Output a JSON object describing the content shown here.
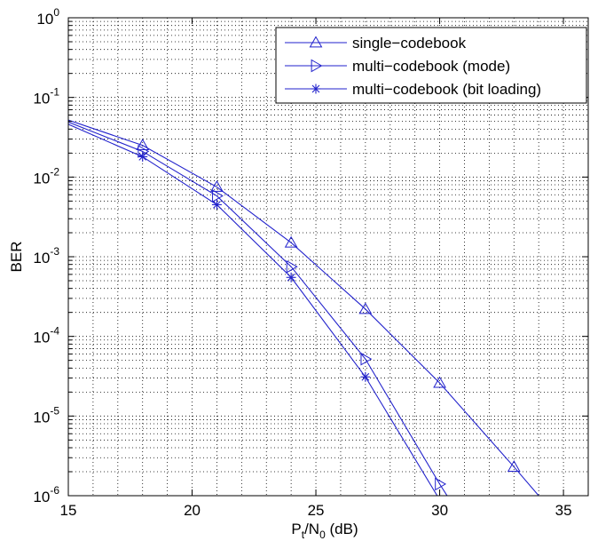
{
  "chart_data": {
    "type": "line",
    "title": "",
    "xlabel": {
      "main": "P",
      "sub1": "t",
      "mid": "/N",
      "sub2": "0",
      "unit": " (dB)"
    },
    "ylabel": "BER",
    "xlim": [
      15,
      36
    ],
    "ylim_log10": [
      -6,
      0
    ],
    "y_scale": "log",
    "grid": "dotted",
    "legend_position": "top-right",
    "x_ticks": [
      15,
      20,
      25,
      30,
      35
    ],
    "y_ticks": [
      {
        "base": "10",
        "exp": "0"
      },
      {
        "base": "10",
        "exp": "-1"
      },
      {
        "base": "10",
        "exp": "-2"
      },
      {
        "base": "10",
        "exp": "-3"
      },
      {
        "base": "10",
        "exp": "-4"
      },
      {
        "base": "10",
        "exp": "-5"
      },
      {
        "base": "10",
        "exp": "-6"
      }
    ],
    "line_color": "#2222cc",
    "series": [
      {
        "name": "single−codebook",
        "marker": "triangle-up",
        "x": [
          15,
          18,
          21,
          24,
          27,
          30,
          33,
          34
        ],
        "y": [
          0.052,
          0.025,
          0.0075,
          0.0015,
          0.00022,
          2.6e-05,
          2.3e-06,
          1e-06
        ]
      },
      {
        "name": "multi−codebook (mode)",
        "marker": "triangle-right",
        "x": [
          15,
          18,
          21,
          24,
          27,
          30,
          30.3
        ],
        "y": [
          0.049,
          0.021,
          0.0058,
          0.00075,
          5.2e-05,
          1.4e-06,
          1e-06
        ]
      },
      {
        "name": "multi−codebook (bit loading)",
        "marker": "asterisk",
        "x": [
          15,
          18,
          21,
          24,
          27,
          29.9
        ],
        "y": [
          0.046,
          0.018,
          0.0045,
          0.00055,
          3.1e-05,
          1e-06
        ]
      }
    ]
  }
}
